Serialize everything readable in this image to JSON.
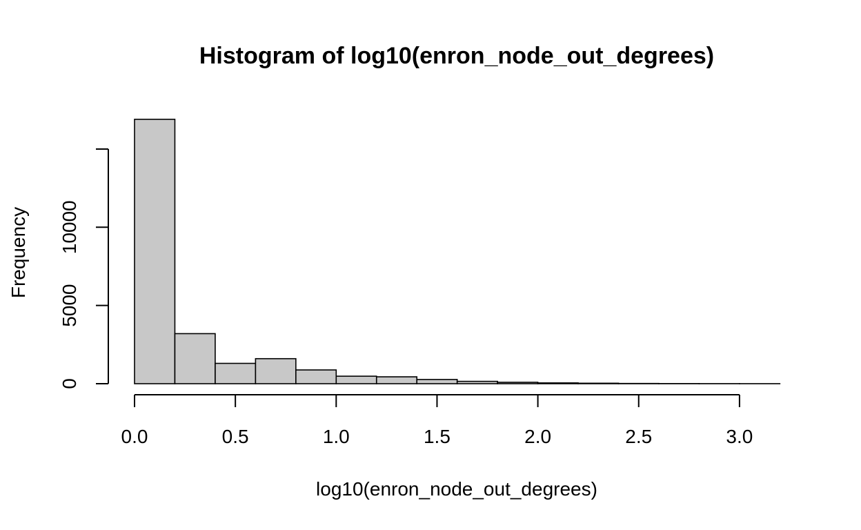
{
  "chart_data": {
    "type": "bar",
    "title": "Histogram of log10(enron_node_out_degrees)",
    "xlabel": "log10(enron_node_out_degrees)",
    "ylabel": "Frequency",
    "bins": [
      {
        "x0": 0.0,
        "x1": 0.2,
        "count": 16900
      },
      {
        "x0": 0.2,
        "x1": 0.4,
        "count": 3200
      },
      {
        "x0": 0.4,
        "x1": 0.6,
        "count": 1300
      },
      {
        "x0": 0.6,
        "x1": 0.8,
        "count": 1600
      },
      {
        "x0": 0.8,
        "x1": 1.0,
        "count": 880
      },
      {
        "x0": 1.0,
        "x1": 1.2,
        "count": 480
      },
      {
        "x0": 1.2,
        "x1": 1.4,
        "count": 440
      },
      {
        "x0": 1.4,
        "x1": 1.6,
        "count": 270
      },
      {
        "x0": 1.6,
        "x1": 1.8,
        "count": 150
      },
      {
        "x0": 1.8,
        "x1": 2.0,
        "count": 90
      },
      {
        "x0": 2.0,
        "x1": 2.2,
        "count": 50
      },
      {
        "x0": 2.2,
        "x1": 2.4,
        "count": 30
      },
      {
        "x0": 2.4,
        "x1": 2.6,
        "count": 15
      },
      {
        "x0": 2.6,
        "x1": 2.8,
        "count": 8
      },
      {
        "x0": 2.8,
        "x1": 3.0,
        "count": 4
      },
      {
        "x0": 3.0,
        "x1": 3.2,
        "count": 2
      }
    ],
    "xticks": [
      {
        "value": 0.0,
        "label": "0.0"
      },
      {
        "value": 0.5,
        "label": "0.5"
      },
      {
        "value": 1.0,
        "label": "1.0"
      },
      {
        "value": 1.5,
        "label": "1.5"
      },
      {
        "value": 2.0,
        "label": "2.0"
      },
      {
        "value": 2.5,
        "label": "2.5"
      },
      {
        "value": 3.0,
        "label": "3.0"
      }
    ],
    "yticks": [
      {
        "value": 0,
        "label": "0"
      },
      {
        "value": 5000,
        "label": "5000"
      },
      {
        "value": 10000,
        "label": "10000"
      },
      {
        "value": 15000,
        "label": ""
      }
    ],
    "xlim": [
      0.0,
      3.2
    ],
    "ylim": [
      0,
      16900
    ],
    "bar_color": "#c8c8c8",
    "grid": false,
    "legend": "none"
  }
}
